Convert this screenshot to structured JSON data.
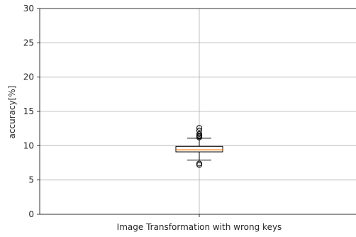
{
  "chart_data": {
    "type": "boxplot",
    "title": "",
    "xlabel": "",
    "ylabel": "accuracy[%]",
    "ylim": [
      0,
      30
    ],
    "yticks": [
      0,
      5,
      10,
      15,
      20,
      25,
      30
    ],
    "grid": true,
    "categories": [
      "Image Transformation with wrong keys"
    ],
    "boxes": [
      {
        "category": "Image Transformation with wrong keys",
        "whisker_low": 7.9,
        "q1": 9.1,
        "median": 9.4,
        "q3": 9.9,
        "whisker_high": 11.1,
        "outliers": [
          7.2,
          7.4,
          11.2,
          11.35,
          11.5,
          11.7,
          12.2,
          12.6
        ]
      }
    ],
    "colors": {
      "box": "#000000",
      "median": "#ff7f0e",
      "grid": "#b0b0b0",
      "axis": "#000000"
    }
  }
}
